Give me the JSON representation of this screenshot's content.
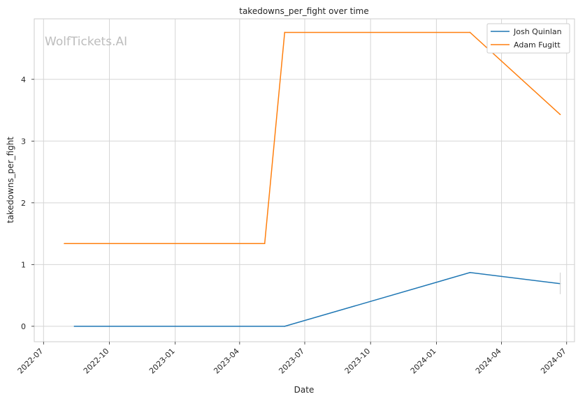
{
  "chart_data": {
    "type": "line",
    "title": "takedowns_per_fight over time",
    "xlabel": "Date",
    "ylabel": "takedowns_per_fight",
    "watermark": "WolfTickets.AI",
    "x_ticks": [
      "2022-07",
      "2022-10",
      "2023-01",
      "2023-04",
      "2023-07",
      "2023-10",
      "2024-01",
      "2024-04",
      "2024-07"
    ],
    "y_ticks": [
      "0",
      "1",
      "2",
      "3",
      "4"
    ],
    "ylim": [
      -0.25,
      4.98
    ],
    "xlim": [
      "2022-06-18",
      "2024-07-12"
    ],
    "grid": true,
    "legend_position": "top-right",
    "series": [
      {
        "name": "Josh Quinlan",
        "color": "#1f77b4",
        "x": [
          "2022-08-13",
          "2023-06-03",
          "2024-02-17",
          "2024-06-22"
        ],
        "y": [
          0,
          0,
          0.87,
          0.69
        ]
      },
      {
        "name": "Adam Fugitt",
        "color": "#ff7f0e",
        "x": [
          "2022-07-30",
          "2023-05-06",
          "2023-06-03",
          "2024-02-17",
          "2024-06-22"
        ],
        "y": [
          1.34,
          1.34,
          4.76,
          4.76,
          3.43
        ]
      }
    ],
    "error_bar": {
      "series": "Josh Quinlan",
      "x": "2024-06-22",
      "low": 0.52,
      "high": 0.87
    }
  }
}
